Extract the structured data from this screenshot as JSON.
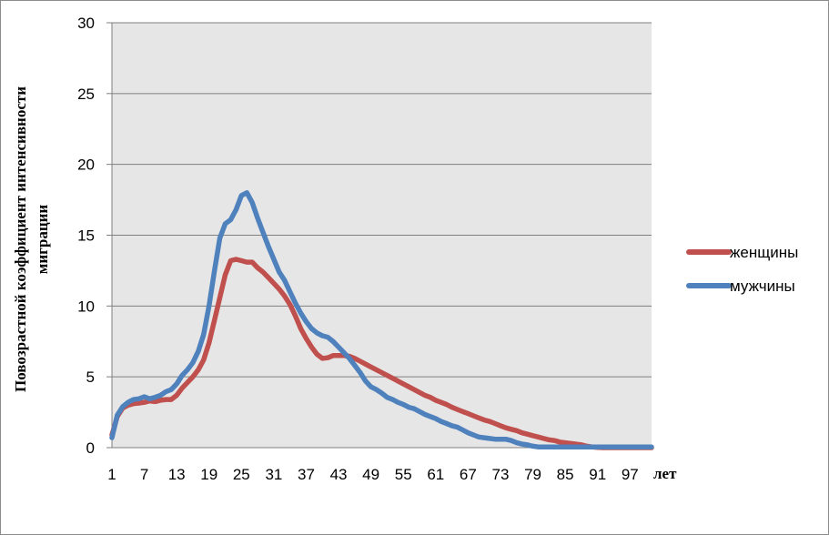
{
  "chart_data": {
    "type": "line",
    "ylabel_lines": [
      "Повозрастной коэффициент интенсивности",
      "миграции"
    ],
    "xlabel": "лет",
    "ylim": [
      0,
      30
    ],
    "yticks": [
      0,
      5,
      10,
      15,
      20,
      25,
      30
    ],
    "xlim": [
      1,
      101
    ],
    "xticks": [
      1,
      7,
      13,
      19,
      25,
      31,
      37,
      43,
      49,
      55,
      61,
      67,
      73,
      79,
      85,
      91,
      97
    ],
    "grid": true,
    "legend_position": "right",
    "x": [
      1,
      2,
      3,
      4,
      5,
      6,
      7,
      8,
      9,
      10,
      11,
      12,
      13,
      14,
      15,
      16,
      17,
      18,
      19,
      20,
      21,
      22,
      23,
      24,
      25,
      26,
      27,
      28,
      29,
      30,
      31,
      32,
      33,
      34,
      35,
      36,
      37,
      38,
      39,
      40,
      41,
      42,
      43,
      44,
      45,
      46,
      47,
      48,
      49,
      50,
      51,
      52,
      53,
      54,
      55,
      56,
      57,
      58,
      59,
      60,
      61,
      62,
      63,
      64,
      65,
      66,
      67,
      68,
      69,
      70,
      71,
      72,
      73,
      74,
      75,
      76,
      77,
      78,
      79,
      80,
      81,
      82,
      83,
      84,
      85,
      86,
      87,
      88,
      89,
      90,
      91,
      92,
      93,
      94,
      95,
      96,
      97,
      98,
      99,
      100,
      101
    ],
    "series": [
      {
        "name": "женщины",
        "color": "#c0504d",
        "values": [
          0.9,
          2.2,
          2.8,
          3.0,
          3.1,
          3.15,
          3.2,
          3.3,
          3.25,
          3.35,
          3.4,
          3.4,
          3.7,
          4.2,
          4.6,
          5.0,
          5.5,
          6.2,
          7.4,
          9.0,
          10.6,
          12.2,
          13.2,
          13.3,
          13.2,
          13.1,
          13.1,
          12.7,
          12.4,
          12.0,
          11.6,
          11.2,
          10.7,
          10.1,
          9.3,
          8.4,
          7.7,
          7.1,
          6.6,
          6.3,
          6.35,
          6.5,
          6.5,
          6.5,
          6.45,
          6.3,
          6.1,
          5.9,
          5.7,
          5.5,
          5.3,
          5.1,
          4.9,
          4.7,
          4.5,
          4.3,
          4.1,
          3.9,
          3.7,
          3.55,
          3.35,
          3.2,
          3.05,
          2.85,
          2.7,
          2.55,
          2.4,
          2.25,
          2.1,
          1.95,
          1.85,
          1.7,
          1.55,
          1.4,
          1.3,
          1.2,
          1.05,
          0.95,
          0.85,
          0.75,
          0.65,
          0.55,
          0.5,
          0.4,
          0.35,
          0.3,
          0.25,
          0.2,
          0.1,
          0.05,
          0.02,
          0,
          0,
          0,
          0,
          0,
          0,
          0,
          0,
          0,
          0
        ]
      },
      {
        "name": "мужчины",
        "color": "#4f81bd",
        "values": [
          0.7,
          2.3,
          2.9,
          3.2,
          3.4,
          3.45,
          3.6,
          3.45,
          3.55,
          3.7,
          3.95,
          4.1,
          4.5,
          5.1,
          5.5,
          6.0,
          6.8,
          8.0,
          10.0,
          12.5,
          14.8,
          15.8,
          16.1,
          16.8,
          17.8,
          18.0,
          17.3,
          16.2,
          15.2,
          14.2,
          13.3,
          12.4,
          11.8,
          11.0,
          10.2,
          9.5,
          8.9,
          8.4,
          8.1,
          7.9,
          7.8,
          7.5,
          7.1,
          6.7,
          6.3,
          5.8,
          5.3,
          4.7,
          4.3,
          4.1,
          3.85,
          3.55,
          3.4,
          3.2,
          3.05,
          2.85,
          2.75,
          2.55,
          2.35,
          2.2,
          2.05,
          1.85,
          1.7,
          1.55,
          1.45,
          1.25,
          1.05,
          0.9,
          0.75,
          0.7,
          0.65,
          0.6,
          0.6,
          0.6,
          0.5,
          0.35,
          0.25,
          0.2,
          0.1,
          0.05,
          0.05,
          0.05,
          0.05,
          0.05,
          0.05,
          0.05,
          0.05,
          0.05,
          0.05,
          0.05,
          0.05,
          0.05,
          0.05,
          0.05,
          0.05,
          0.05,
          0.05,
          0.05,
          0.05,
          0.05,
          0.05
        ]
      }
    ]
  }
}
